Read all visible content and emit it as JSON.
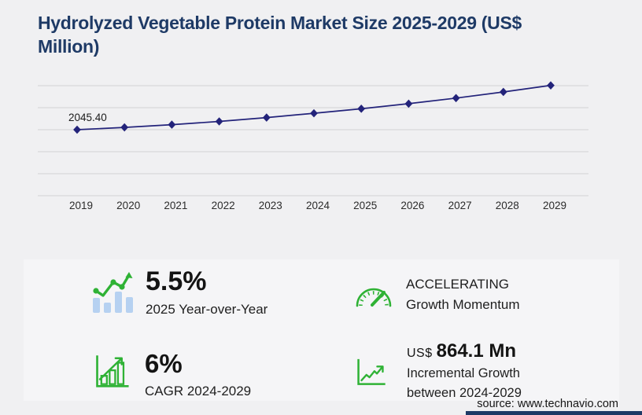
{
  "title": {
    "full": "Hydrolyzed Vegetable Protein Market Size 2025-2029 (US$ Million)",
    "line1": "Hydrolyzed Vegetable Protein Market Size 2025-2029 (US$",
    "line2": "Million)"
  },
  "chart_data": {
    "type": "line",
    "title": "Hydrolyzed Vegetable Protein Market Size 2025-2029 (US$ Million)",
    "xlabel": "",
    "ylabel": "",
    "x": [
      "2019",
      "2020",
      "2021",
      "2022",
      "2023",
      "2024",
      "2025",
      "2026",
      "2027",
      "2028",
      "2029"
    ],
    "values": [
      2045.4,
      2117.0,
      2201.7,
      2300.8,
      2420.4,
      2553.7,
      2694.2,
      2850.4,
      3024.3,
      3214.8,
      3417.8
    ],
    "first_point_label": "2045.40",
    "marker": "diamond",
    "grid": "horizontal",
    "legend": "none",
    "y_axis": {
      "min": 0,
      "grid_top_value": 3409,
      "gridlines": 6,
      "tick_labels_visible": false
    }
  },
  "stats": [
    {
      "icon": "trend-bars-icon",
      "value": "5.5%",
      "label": "2025 Year-over-Year"
    },
    {
      "icon": "speedometer-icon",
      "value": "ACCELERATING",
      "label": "Growth Momentum"
    },
    {
      "icon": "growth-chart-icon",
      "value": "6%",
      "label": "CAGR 2024-2029"
    },
    {
      "icon": "line-growth-icon",
      "value_prefix": "US$",
      "value": "864.1 Mn",
      "label": "Incremental Growth",
      "label2": "between 2024-2029"
    }
  ],
  "source": "source: www.technavio.com",
  "colors": {
    "navy": "#1e3a66",
    "line": "#23237a",
    "green": "#2fb235",
    "lightblue": "#b6d1f1",
    "gridline": "#d8d8da",
    "bg": "#f0f0f2",
    "panel": "#f5f5f7"
  }
}
